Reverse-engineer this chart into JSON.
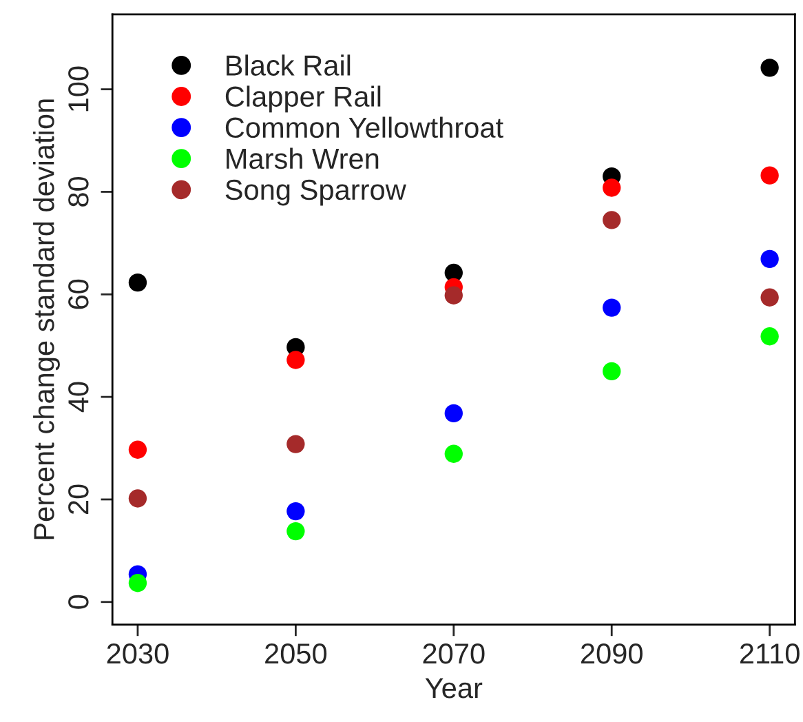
{
  "chart_data": {
    "type": "scatter",
    "xlabel": "Year",
    "ylabel": "Percent change standard deviation",
    "x": [
      2030,
      2050,
      2070,
      2090,
      2110
    ],
    "series": [
      {
        "name": "Black Rail",
        "color": "#000000",
        "values": [
          62.3,
          49.7,
          64.2,
          83.0,
          104.2
        ]
      },
      {
        "name": "Clapper Rail",
        "color": "#ff0000",
        "values": [
          29.7,
          47.2,
          61.4,
          80.8,
          83.2
        ]
      },
      {
        "name": "Common Yellowthroat",
        "color": "#0000ff",
        "values": [
          5.4,
          17.7,
          36.8,
          57.4,
          66.9
        ]
      },
      {
        "name": "Marsh Wren",
        "color": "#00ff00",
        "values": [
          3.7,
          13.8,
          28.9,
          45.0,
          51.8
        ]
      },
      {
        "name": "Song Sparrow",
        "color": "#a52a2a",
        "values": [
          20.2,
          30.8,
          59.8,
          74.5,
          59.4
        ]
      }
    ],
    "xlim": [
      2026.8,
      2113.2
    ],
    "ylim": [
      -4.4,
      114.6
    ],
    "xticks": [
      2030,
      2050,
      2070,
      2090,
      2110
    ],
    "yticks": [
      0,
      20,
      40,
      60,
      80,
      100
    ],
    "legend": "top left",
    "grid": false,
    "marker": "circle"
  }
}
